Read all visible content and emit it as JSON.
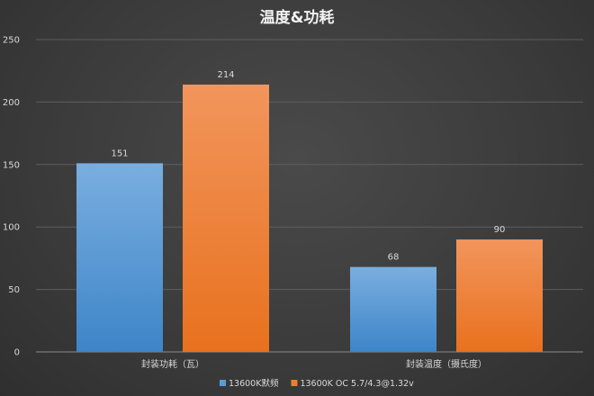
{
  "chart_data": {
    "type": "bar",
    "title": "温度&功耗",
    "categories": [
      "封装功耗（瓦）",
      "封装温度（摄氏度）"
    ],
    "series": [
      {
        "name": "13600K默频",
        "values": [
          151,
          68
        ],
        "color": "#5b9bd5"
      },
      {
        "name": "13600K OC 5.7/4.3@1.32v",
        "values": [
          214,
          90
        ],
        "color": "#ed7d31"
      }
    ],
    "ylim": [
      0,
      250
    ],
    "yticks": [
      0,
      50,
      100,
      150,
      200,
      250
    ],
    "grid": true,
    "legend_position": "bottom"
  }
}
